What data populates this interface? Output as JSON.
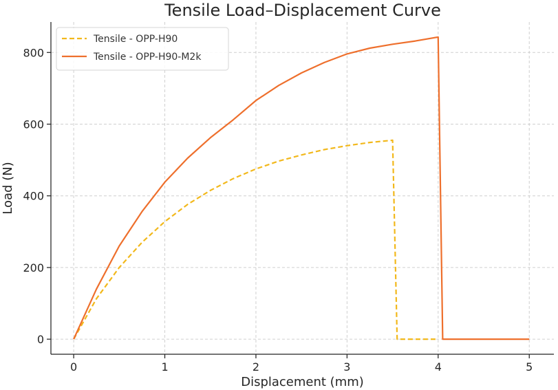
{
  "chart_data": {
    "type": "line",
    "title": "Tensile Load–Displacement Curve",
    "xlabel": "Displacement (mm)",
    "ylabel": "Load (N)",
    "xlim": [
      -0.25,
      5.27
    ],
    "ylim": [
      -42,
      885
    ],
    "xticks": [
      0,
      1,
      2,
      3,
      4,
      5
    ],
    "yticks": [
      0,
      200,
      400,
      600,
      800
    ],
    "grid": true,
    "legend_position": "top-left",
    "series": [
      {
        "name": "Tensile - OPP-H90",
        "color": "#f2b81b",
        "line_style": "dashed",
        "x": [
          0,
          0.25,
          0.5,
          0.75,
          1.0,
          1.25,
          1.5,
          1.75,
          2.0,
          2.25,
          2.5,
          2.75,
          3.0,
          3.25,
          3.5,
          3.55,
          4.0
        ],
        "y": [
          0,
          113,
          200,
          270,
          328,
          376,
          415,
          448,
          475,
          497,
          514,
          529,
          540,
          549,
          555,
          0,
          0
        ]
      },
      {
        "name": "Tensile - OPP-H90-M2k",
        "color": "#ee6f2c",
        "line_style": "solid",
        "x": [
          0,
          0.25,
          0.5,
          0.75,
          1.0,
          1.25,
          1.5,
          1.75,
          2.0,
          2.25,
          2.5,
          2.75,
          3.0,
          3.25,
          3.5,
          3.75,
          4.0,
          4.05,
          5.0
        ],
        "y": [
          0,
          140,
          260,
          356,
          438,
          505,
          562,
          612,
          666,
          708,
          743,
          772,
          796,
          812,
          823,
          832,
          843,
          0,
          0
        ]
      }
    ]
  }
}
